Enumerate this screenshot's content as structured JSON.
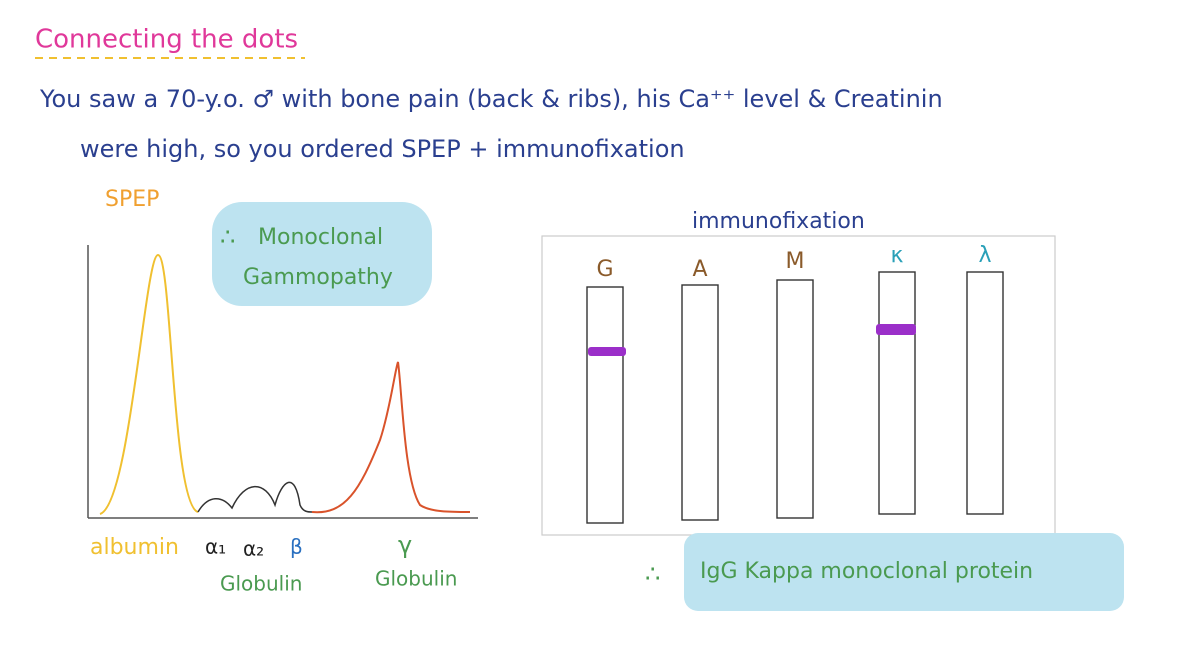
{
  "header": {
    "title": "Connecting the dots"
  },
  "case": {
    "lines": [
      "You saw a 70-y.o. ♂ with bone pain (back & ribs), his Ca⁺⁺ level & Creatinin",
      "were high, so you ordered SPEP + immunofixation"
    ]
  },
  "spep": {
    "title": "SPEP",
    "note": {
      "symbol": "∴",
      "lines": [
        "Monoclonal",
        "Gammopathy"
      ]
    },
    "axis_labels": {
      "albumin": "albumin",
      "alpha1": "α₁",
      "alpha2": "α₂",
      "beta": "β",
      "globulin1": "Globulin",
      "gamma": "γ",
      "globulin2": "Globulin"
    }
  },
  "immunofixation": {
    "title": "immunofixation",
    "lanes": [
      "G",
      "A",
      "M",
      "κ",
      "λ"
    ]
  },
  "conclusion": {
    "symbol": "∴",
    "text": "IgG Kappa monoclonal protein"
  }
}
